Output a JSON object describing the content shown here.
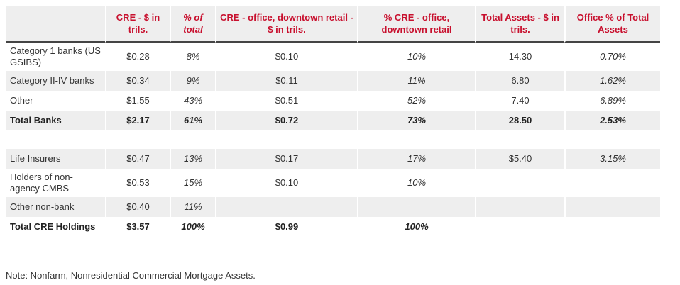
{
  "table": {
    "headers": [
      "",
      "CRE - $ in trils.",
      "% of total",
      "CRE - office, downtown retail - $ in trils.",
      "% CRE - office, downtown retail",
      "Total Assets - $ in trils.",
      "Office % of Total Assets"
    ],
    "rows": [
      {
        "label": "Category 1 banks (US GSIBS)",
        "cre": "$0.28",
        "pct_total": "8%",
        "cre_office": "$0.10",
        "pct_office": "10%",
        "total_assets": "14.30",
        "office_pct_assets": "0.70%"
      },
      {
        "label": "Category II-IV banks",
        "cre": "$0.34",
        "pct_total": "9%",
        "cre_office": "$0.11",
        "pct_office": "11%",
        "total_assets": "6.80",
        "office_pct_assets": "1.62%"
      },
      {
        "label": "Other",
        "cre": "$1.55",
        "pct_total": "43%",
        "cre_office": "$0.51",
        "pct_office": "52%",
        "total_assets": "7.40",
        "office_pct_assets": "6.89%"
      },
      {
        "label": "Total Banks",
        "cre": "$2.17",
        "pct_total": "61%",
        "cre_office": "$0.72",
        "pct_office": "73%",
        "total_assets": "28.50",
        "office_pct_assets": "2.53%"
      },
      {
        "label": "Life Insurers",
        "cre": "$0.47",
        "pct_total": "13%",
        "cre_office": "$0.17",
        "pct_office": "17%",
        "total_assets": "$5.40",
        "office_pct_assets": "3.15%"
      },
      {
        "label": "Holders of non-agency CMBS",
        "cre": "$0.53",
        "pct_total": "15%",
        "cre_office": "$0.10",
        "pct_office": "10%",
        "total_assets": "",
        "office_pct_assets": ""
      },
      {
        "label": "Other non-bank",
        "cre": "$0.40",
        "pct_total": "11%",
        "cre_office": "",
        "pct_office": "",
        "total_assets": "",
        "office_pct_assets": ""
      },
      {
        "label": "Total CRE Holdings",
        "cre": "$3.57",
        "pct_total": "100%",
        "cre_office": "$0.99",
        "pct_office": "100%",
        "total_assets": "",
        "office_pct_assets": ""
      }
    ]
  },
  "note": "Note: Nonfarm, Nonresidential Commercial Mortgage Assets.",
  "colors": {
    "header_text": "#c8102e",
    "shade": "#eeeeee",
    "header_rule": "#444444"
  }
}
